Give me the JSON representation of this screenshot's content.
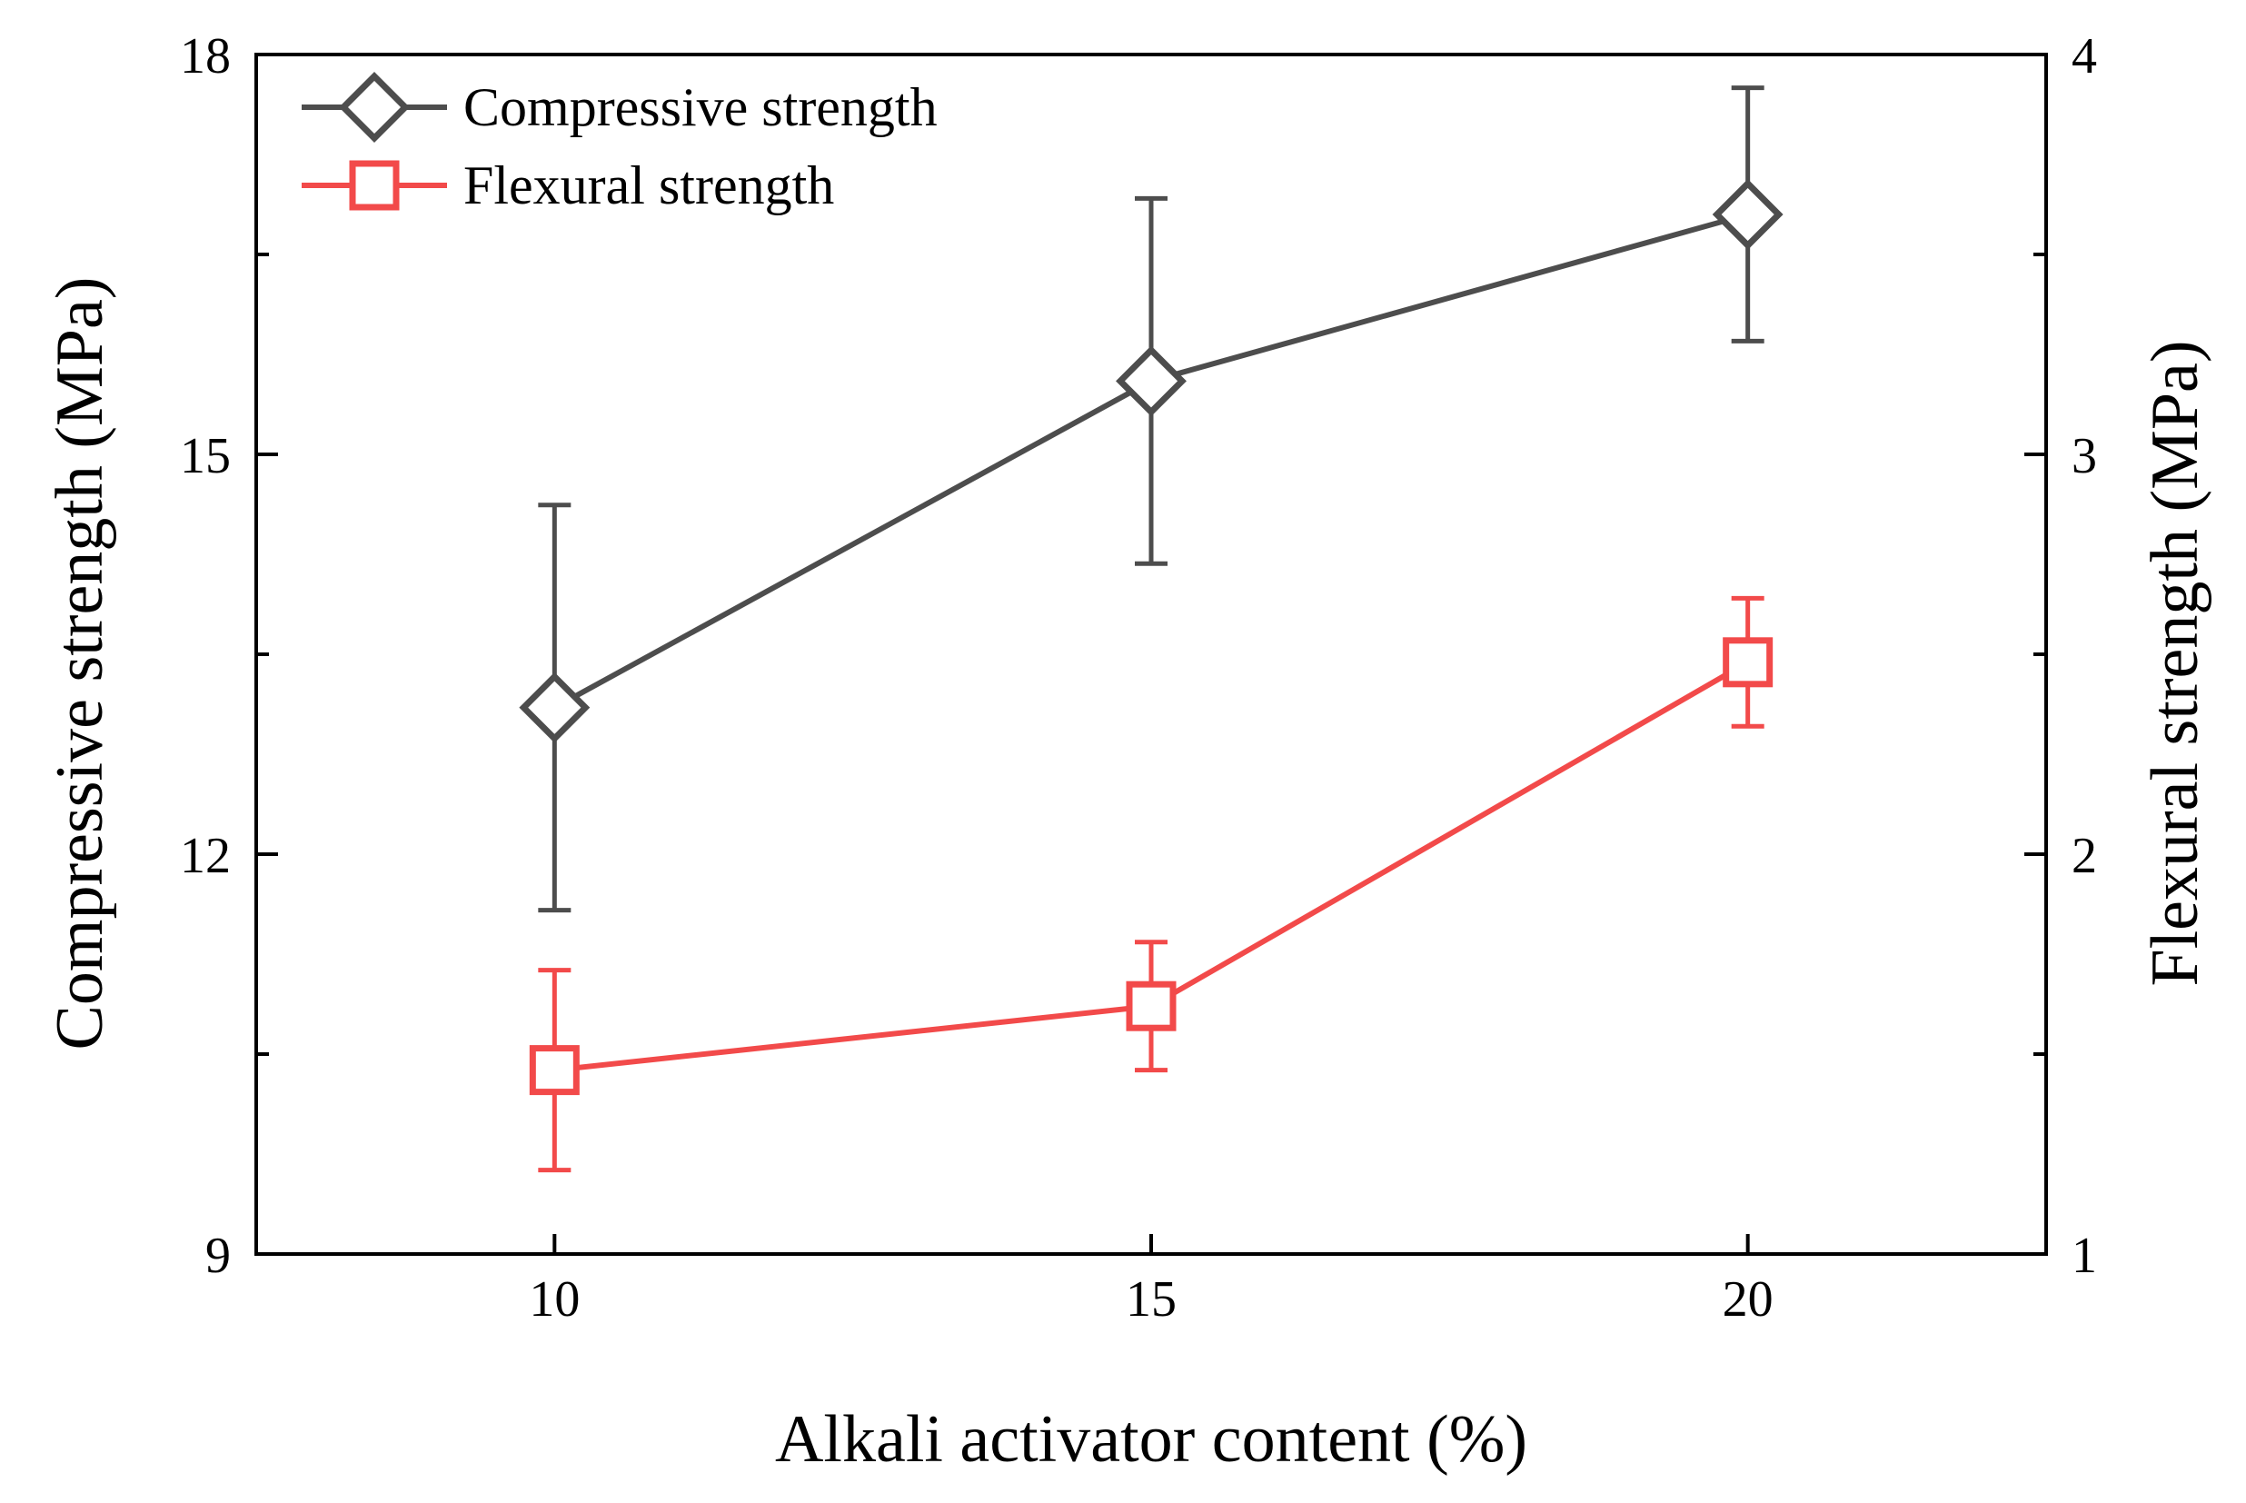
{
  "chart_data": {
    "type": "line",
    "title": "",
    "xlabel": "Alkali activator content (%)",
    "ylabel_left": "Compressive strength (MPa)",
    "ylabel_right": "Flexural strength (MPa)",
    "x": [
      10,
      15,
      20
    ],
    "xlim": [
      7.5,
      22.5
    ],
    "xticks": [
      "10",
      "15",
      "20"
    ],
    "ylim_left": [
      9,
      18
    ],
    "yticks_left": [
      "9",
      "12",
      "15",
      "18"
    ],
    "ylim_right": [
      1,
      4
    ],
    "yticks_right": [
      "1",
      "2",
      "3",
      "4"
    ],
    "legend_position": "top-left",
    "series": [
      {
        "name": "Compressive strength",
        "axis": "left",
        "marker": "diamond",
        "color": "#4d4d4d",
        "values": [
          13.1,
          15.55,
          16.8
        ],
        "errors": [
          1.52,
          1.37,
          0.95
        ]
      },
      {
        "name": "Flexural strength",
        "axis": "right",
        "marker": "square",
        "color": "#f24a4a",
        "values": [
          1.46,
          1.62,
          2.48
        ],
        "errors": [
          0.25,
          0.16,
          0.16
        ]
      }
    ]
  }
}
